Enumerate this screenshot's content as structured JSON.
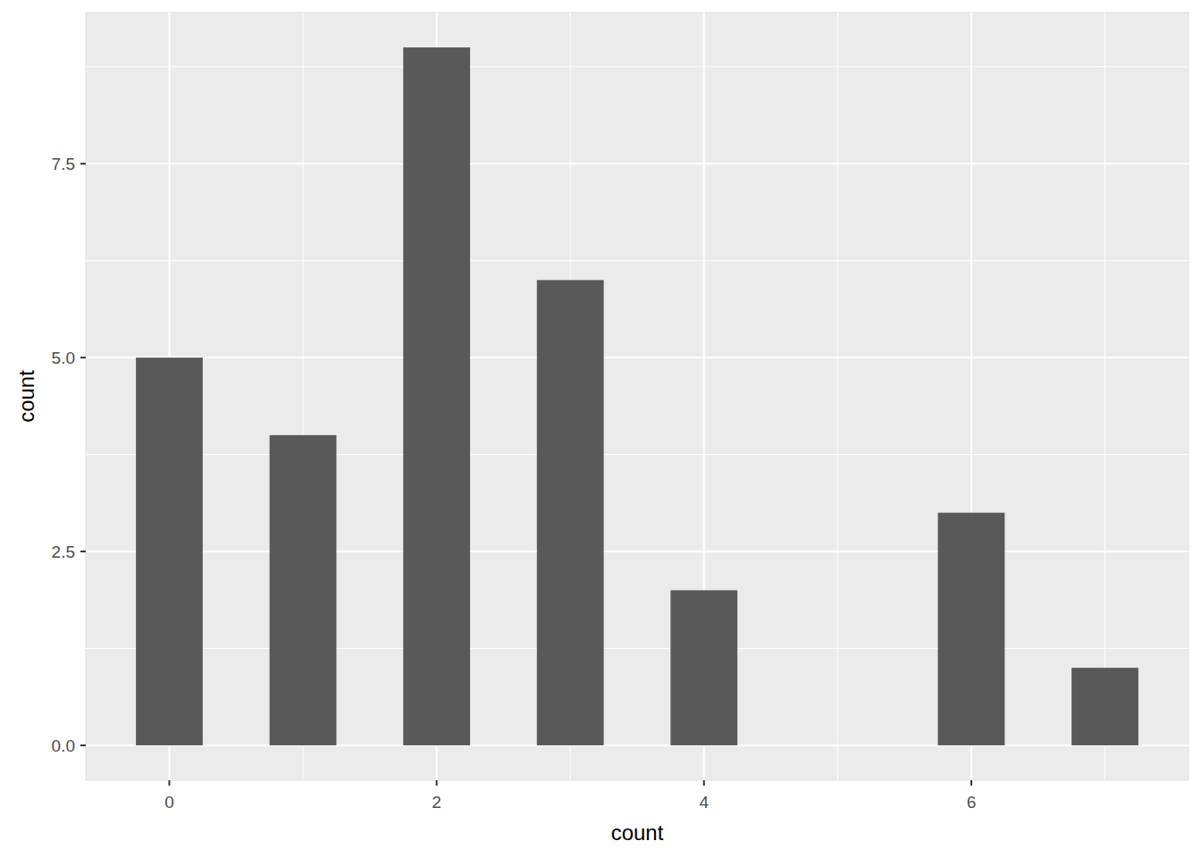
{
  "chart_data": {
    "type": "bar",
    "x_label": "count",
    "y_label": "count",
    "x": [
      0,
      1,
      2,
      3,
      4,
      6,
      7
    ],
    "values": [
      5,
      4,
      9,
      6,
      2,
      3,
      1
    ],
    "color": "#595959",
    "xlim": [
      -0.625,
      7.625
    ],
    "xticks": [
      0,
      2,
      4,
      6
    ],
    "ylim": [
      -0.45,
      9.45
    ],
    "yticks": [
      {
        "value": 0,
        "label": "0.0"
      },
      {
        "value": 2.5,
        "label": "2.5"
      },
      {
        "value": 5,
        "label": "5.0"
      },
      {
        "value": 7.5,
        "label": "7.5"
      }
    ],
    "grid": true
  }
}
